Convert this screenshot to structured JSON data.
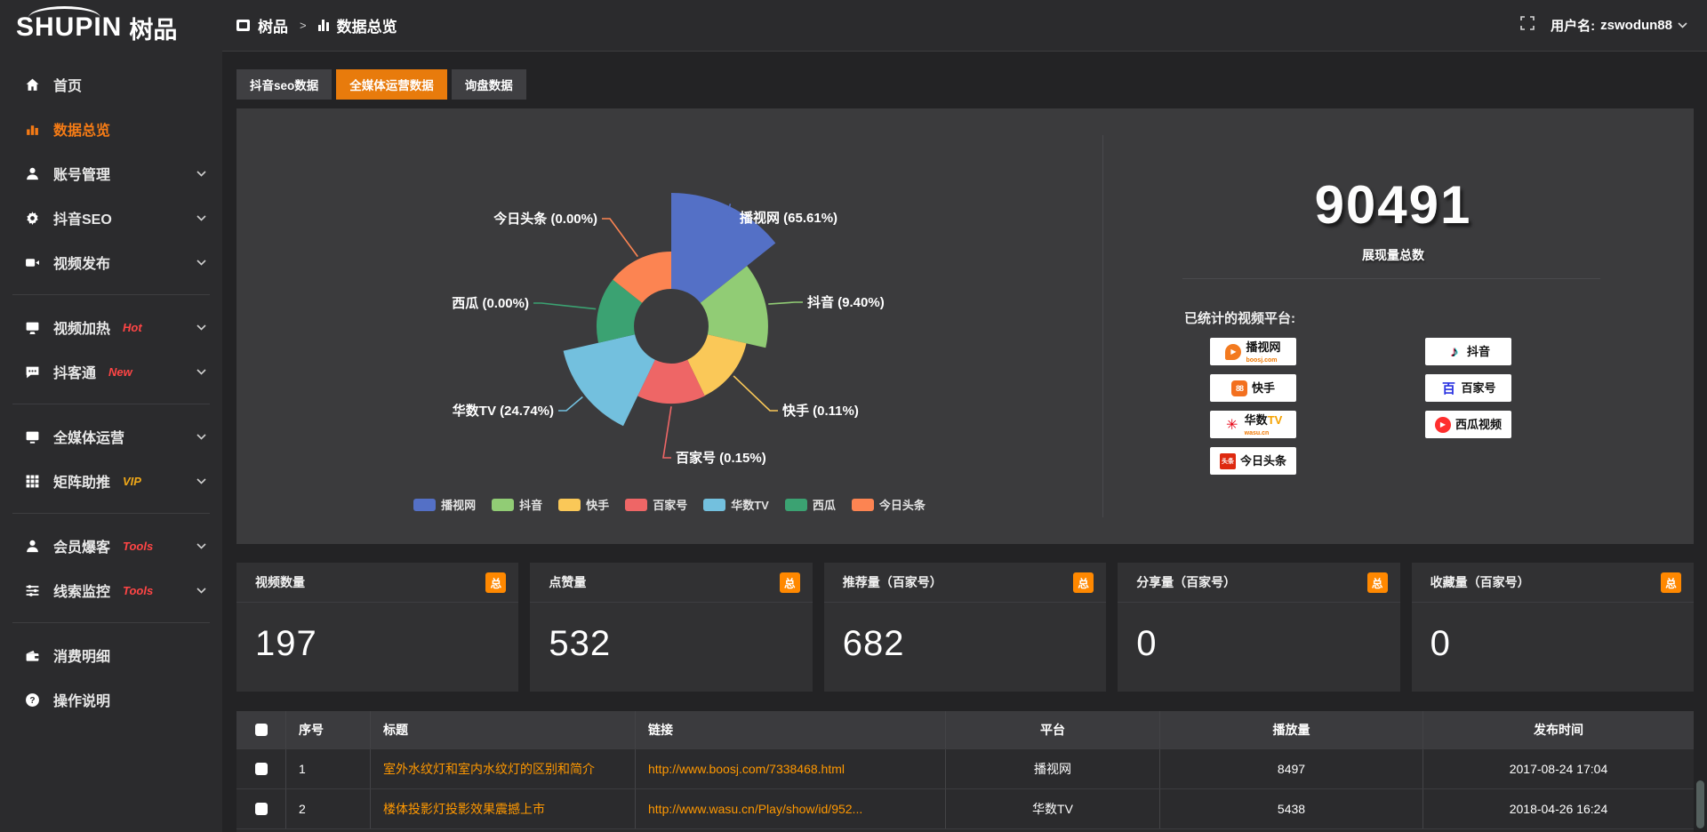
{
  "colors": {
    "accent_orange": "#e87b0c",
    "sidebar_active": "#f57b15",
    "badge_orange": "#ff8800",
    "link_orange": "#ff9800",
    "tag_red": "#ff4545",
    "tag_vip_gold": "#f0a818",
    "panel_bg": "#3b3b3d",
    "page_bg": "#232325"
  },
  "sidebar": {
    "logo": {
      "en": "SHUPIN",
      "zh": "树品"
    },
    "items": [
      {
        "label": "首页",
        "icon": "home-icon"
      },
      {
        "label": "数据总览",
        "icon": "bar-chart-icon",
        "active": true
      },
      {
        "label": "账号管理",
        "icon": "user-icon",
        "expandable": true
      },
      {
        "label": "抖音SEO",
        "icon": "gear-icon",
        "expandable": true
      },
      {
        "label": "视频发布",
        "icon": "video-camera-icon",
        "expandable": true
      },
      {
        "label": "视频加热",
        "icon": "monitor-icon",
        "tag": "Hot",
        "tag_color": "#ff4545",
        "expandable": true
      },
      {
        "label": "抖客通",
        "icon": "chat-bubble-icon",
        "tag": "New",
        "tag_color": "#ff4545",
        "expandable": true
      },
      {
        "label": "全媒体运营",
        "icon": "monitor-icon",
        "expandable": true
      },
      {
        "label": "矩阵助推",
        "icon": "grid-icon",
        "tag": "VIP",
        "tag_color": "#f0a818",
        "expandable": true
      },
      {
        "label": "会员爆客",
        "icon": "user-icon",
        "tag": "Tools",
        "tag_color": "#ff4545",
        "expandable": true
      },
      {
        "label": "线索监控",
        "icon": "sliders-icon",
        "tag": "Tools",
        "tag_color": "#ff4545",
        "expandable": true
      },
      {
        "label": "消费明细",
        "icon": "wallet-icon"
      },
      {
        "label": "操作说明",
        "icon": "question-circle-icon"
      }
    ]
  },
  "topbar": {
    "breadcrumb": [
      {
        "label": "树品",
        "icon": "app-icon"
      },
      {
        "label": "数据总览",
        "icon": "bar-chart-icon"
      }
    ],
    "separator": ">",
    "fullscreen_icon": "fullscreen-icon",
    "username_prefix": "用户名: ",
    "username": "zswodun88"
  },
  "tabs": [
    {
      "label": "抖音seo数据",
      "active": false
    },
    {
      "label": "全媒体运营数据",
      "active": true
    },
    {
      "label": "询盘数据",
      "active": false
    }
  ],
  "chart_data": {
    "type": "pie",
    "variant": "nightingale-rose",
    "labels": [
      "播视网",
      "抖音",
      "快手",
      "百家号",
      "华数TV",
      "西瓜",
      "今日头条"
    ],
    "values_pct": [
      65.61,
      9.4,
      0.11,
      0.15,
      24.74,
      0.0,
      0.0
    ],
    "colors": [
      "#5470c6",
      "#91cc75",
      "#fac858",
      "#ee6666",
      "#73c0de",
      "#3ba272",
      "#fc8452"
    ],
    "label_format": "{name} ({value}%)",
    "legend": [
      "播视网",
      "抖音",
      "快手",
      "百家号",
      "华数TV",
      "西瓜",
      "今日头条"
    ],
    "legend_position": "bottom",
    "donut_hole": true
  },
  "summary": {
    "total_value": "90491",
    "total_label": "展现量总数",
    "platforms_label": "已统计的视频平台:",
    "platform_columns": [
      [
        {
          "icon": "boosj",
          "name": "播视网",
          "sub": "boosj.com"
        },
        {
          "icon": "kuaishou",
          "name": "快手"
        },
        {
          "icon": "wasu",
          "name": "华数",
          "name2": "TV",
          "sub": "wasu.cn"
        },
        {
          "icon": "toutiao",
          "name": "今日头条"
        }
      ],
      [
        {
          "icon": "douyin",
          "name": "抖音"
        },
        {
          "icon": "baijia",
          "name": "百家号"
        },
        {
          "icon": "xigua",
          "name": "西瓜视频"
        }
      ]
    ]
  },
  "stat_cards": [
    {
      "label": "视频数量",
      "badge": "总",
      "value": "197"
    },
    {
      "label": "点赞量",
      "badge": "总",
      "value": "532"
    },
    {
      "label": "推荐量（百家号）",
      "badge": "总",
      "value": "682"
    },
    {
      "label": "分享量（百家号）",
      "badge": "总",
      "value": "0"
    },
    {
      "label": "收藏量（百家号）",
      "badge": "总",
      "value": "0"
    }
  ],
  "table": {
    "columns": [
      "序号",
      "标题",
      "链接",
      "平台",
      "播放量",
      "发布时间"
    ],
    "rows": [
      {
        "index": "1",
        "title": "室外水纹灯和室内水纹灯的区别和简介",
        "link": "http://www.boosj.com/7338468.html",
        "platform": "播视网",
        "plays": "8497",
        "time": "2017-08-24 17:04"
      },
      {
        "index": "2",
        "title": "楼体投影灯投影效果震撼上市",
        "link": "http://www.wasu.cn/Play/show/id/952...",
        "platform": "华数TV",
        "plays": "5438",
        "time": "2018-04-26 16:24"
      }
    ]
  }
}
